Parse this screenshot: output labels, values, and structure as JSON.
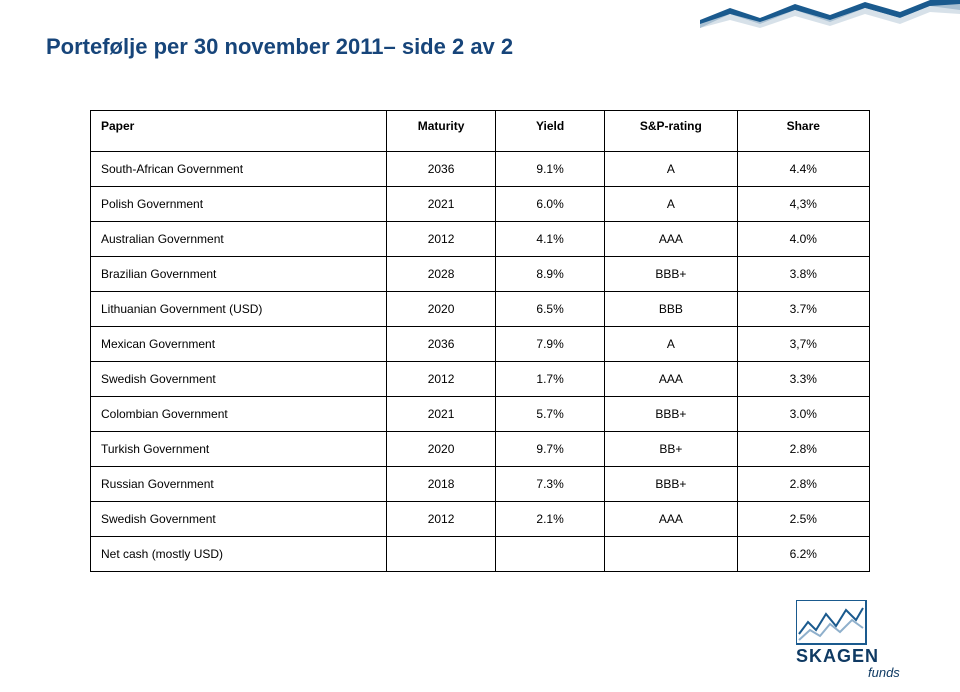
{
  "title": "Portefølje per 30 november 2011– side 2 av 2",
  "headers": {
    "paper": "Paper",
    "maturity": "Maturity",
    "yield": "Yield",
    "rating": "S&P-rating",
    "share": "Share"
  },
  "rows": [
    {
      "paper": "South-African Government",
      "maturity": "2036",
      "yield": "9.1%",
      "rating": "A",
      "share": "4.4%"
    },
    {
      "paper": "Polish Government",
      "maturity": "2021",
      "yield": "6.0%",
      "rating": "A",
      "share": "4,3%"
    },
    {
      "paper": "Australian Government",
      "maturity": "2012",
      "yield": "4.1%",
      "rating": "AAA",
      "share": "4.0%"
    },
    {
      "paper": "Brazilian Government",
      "maturity": "2028",
      "yield": "8.9%",
      "rating": "BBB+",
      "share": "3.8%"
    },
    {
      "paper": "Lithuanian Government (USD)",
      "maturity": "2020",
      "yield": "6.5%",
      "rating": "BBB",
      "share": "3.7%"
    },
    {
      "paper": "Mexican Government",
      "maturity": "2036",
      "yield": "7.9%",
      "rating": "A",
      "share": "3,7%"
    },
    {
      "paper": "Swedish Government",
      "maturity": "2012",
      "yield": "1.7%",
      "rating": "AAA",
      "share": "3.3%"
    },
    {
      "paper": "Colombian Government",
      "maturity": "2021",
      "yield": "5.7%",
      "rating": "BBB+",
      "share": "3.0%"
    },
    {
      "paper": "Turkish Government",
      "maturity": "2020",
      "yield": "9.7%",
      "rating": "BB+",
      "share": "2.8%"
    },
    {
      "paper": "Russian Government",
      "maturity": "2018",
      "yield": "7.3%",
      "rating": "BBB+",
      "share": "2.8%"
    },
    {
      "paper": "Swedish Government",
      "maturity": "2012",
      "yield": "2.1%",
      "rating": "AAA",
      "share": "2.5%"
    },
    {
      "paper": "Net cash (mostly USD)",
      "maturity": "",
      "yield": "",
      "rating": "",
      "share": "6.2%"
    }
  ],
  "colors": {
    "title": "#17457a",
    "border": "#000000",
    "stripe_fill": "#1a5a8e",
    "stripe_light": "#cdd9e4",
    "logo_blue": "#1a5a8e",
    "logo_text": "#0f3a63"
  },
  "logo": {
    "brand": "SKAGEN",
    "sub": "funds"
  }
}
